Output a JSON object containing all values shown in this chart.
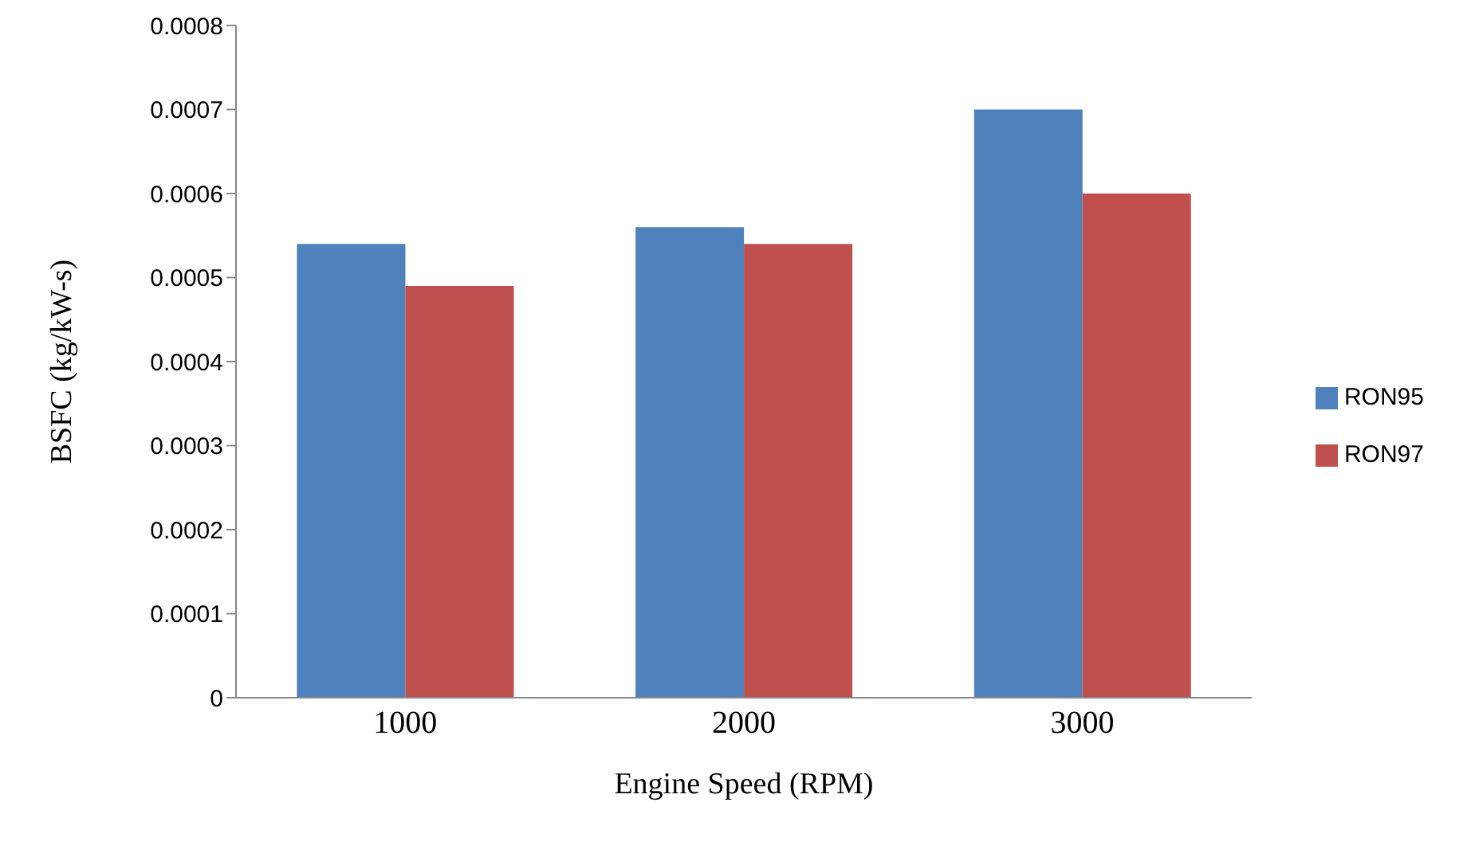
{
  "chart_data": {
    "type": "bar",
    "xlabel": "Engine Speed (RPM)",
    "ylabel": "BSFC (kg/kW-s)",
    "categories": [
      "1000",
      "2000",
      "3000"
    ],
    "series": [
      {
        "name": "RON95",
        "color": "#4f81bd",
        "values": [
          0.00054,
          0.00056,
          0.0007
        ]
      },
      {
        "name": "RON97",
        "color": "#c0504d",
        "values": [
          0.00049,
          0.00054,
          0.0006
        ]
      }
    ],
    "ylim": [
      0,
      0.0008
    ],
    "yticks": [
      0,
      0.0001,
      0.0002,
      0.0003,
      0.0004,
      0.0005,
      0.0006,
      0.0007,
      0.0008
    ],
    "grid": false,
    "legend": "right"
  }
}
